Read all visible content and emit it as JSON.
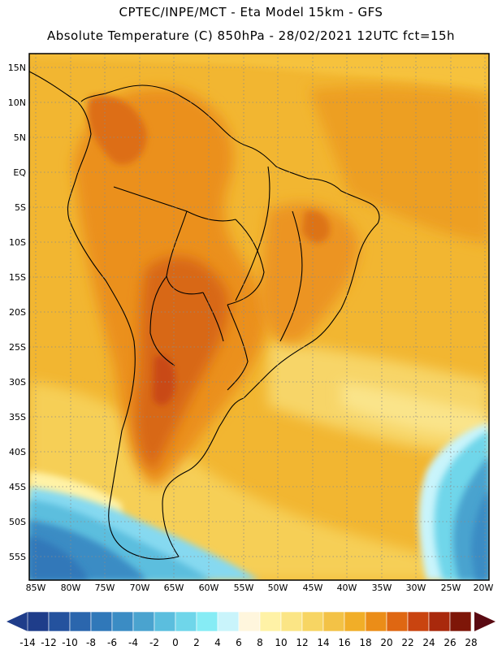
{
  "header": {
    "line1": "CPTEC/INPE/MCT -  Eta Model 15km - GFS",
    "line2": "Absolute Temperature (C) 850hPa - 28/02/2021 12UTC fct=15h"
  },
  "map": {
    "lat_labels": [
      "15N",
      "10N",
      "5N",
      "EQ",
      "5S",
      "10S",
      "15S",
      "20S",
      "25S",
      "30S",
      "35S",
      "40S",
      "45S",
      "50S",
      "55S"
    ],
    "lon_labels": [
      "85W",
      "80W",
      "75W",
      "70W",
      "65W",
      "60W",
      "55W",
      "50W",
      "45W",
      "40W",
      "35W",
      "30W",
      "25W",
      "20W"
    ]
  },
  "colorbar": {
    "labels": [
      "-14",
      "-12",
      "-10",
      "-8",
      "-6",
      "-4",
      "-2",
      "0",
      "2",
      "4",
      "6",
      "8",
      "10",
      "12",
      "14",
      "16",
      "18",
      "20",
      "22",
      "24",
      "26",
      "28"
    ],
    "colors": [
      "#1f3d8a",
      "#24529e",
      "#2b66ad",
      "#3078b9",
      "#3b8cc4",
      "#4aa3cf",
      "#5bbede",
      "#6fd6ea",
      "#86ecf5",
      "#c9f4fb",
      "#fff6dd",
      "#fff2a6",
      "#fbe585",
      "#f7d563",
      "#f3c246",
      "#f1ae28",
      "#eb8d18",
      "#df6712",
      "#c94410",
      "#a9290c",
      "#7e1608",
      "#5a0a12"
    ]
  }
}
